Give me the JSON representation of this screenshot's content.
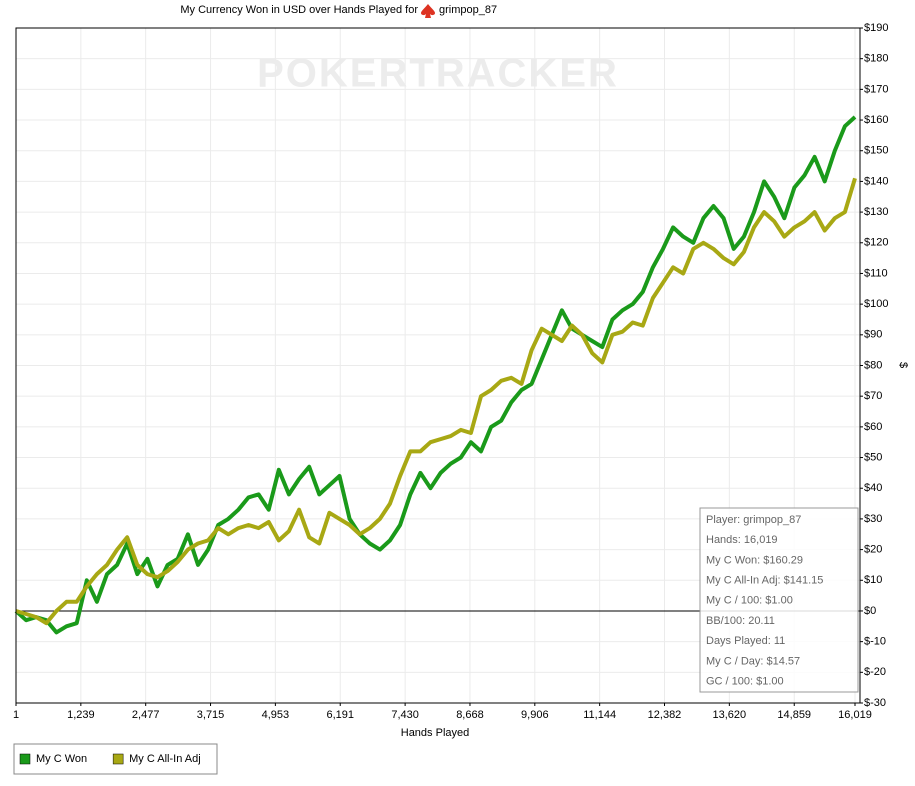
{
  "chart_data": {
    "type": "line",
    "title": "My Currency Won in USD over Hands Played for",
    "player": "grimpop_87",
    "watermark": "POKERTRACKER",
    "x_label": "Hands Played",
    "y_label": "$",
    "xlim": [
      1,
      16019
    ],
    "ylim": [
      -30,
      190
    ],
    "xticks": [
      1,
      {
        "value": 1239,
        "label": "1,239"
      },
      {
        "value": 2477,
        "label": "2,477"
      },
      {
        "value": 3715,
        "label": "3,715"
      },
      {
        "value": 4953,
        "label": "4,953"
      },
      {
        "value": 6191,
        "label": "6,191"
      },
      {
        "value": 7430,
        "label": "7,430"
      },
      {
        "value": 8668,
        "label": "8,668"
      },
      {
        "value": 9906,
        "label": "9,906"
      },
      {
        "value": 11144,
        "label": "11,144"
      },
      {
        "value": 12382,
        "label": "12,382"
      },
      {
        "value": 13620,
        "label": "13,620"
      },
      {
        "value": 14859,
        "label": "14,859"
      },
      {
        "value": 16019,
        "label": "16,019"
      }
    ],
    "yticks": [
      {
        "value": -30,
        "label": "$-30"
      },
      {
        "value": -20,
        "label": "$-20"
      },
      {
        "value": -10,
        "label": "$-10"
      },
      {
        "value": 0,
        "label": "$0"
      },
      {
        "value": 10,
        "label": "$10"
      },
      {
        "value": 20,
        "label": "$20"
      },
      {
        "value": 30,
        "label": "$30"
      },
      {
        "value": 40,
        "label": "$40"
      },
      {
        "value": 50,
        "label": "$50"
      },
      {
        "value": 60,
        "label": "$60"
      },
      {
        "value": 70,
        "label": "$70"
      },
      {
        "value": 80,
        "label": "$80"
      },
      {
        "value": 90,
        "label": "$90"
      },
      {
        "value": 100,
        "label": "$100"
      },
      {
        "value": 110,
        "label": "$110"
      },
      {
        "value": 120,
        "label": "$120"
      },
      {
        "value": 130,
        "label": "$130"
      },
      {
        "value": 140,
        "label": "$140"
      },
      {
        "value": 150,
        "label": "$150"
      },
      {
        "value": 160,
        "label": "$160"
      },
      {
        "value": 170,
        "label": "$170"
      },
      {
        "value": 180,
        "label": "$180"
      },
      {
        "value": 190,
        "label": "$190"
      }
    ],
    "grid": true,
    "x": [
      1,
      194,
      387,
      580,
      773,
      966,
      1159,
      1352,
      1545,
      1738,
      1931,
      2124,
      2317,
      2510,
      2703,
      2896,
      3089,
      3282,
      3475,
      3668,
      3861,
      4054,
      4247,
      4440,
      4633,
      4826,
      5019,
      5212,
      5405,
      5598,
      5791,
      5984,
      6177,
      6370,
      6563,
      6756,
      6949,
      7142,
      7335,
      7528,
      7721,
      7914,
      8107,
      8300,
      8493,
      8686,
      8879,
      9072,
      9265,
      9458,
      9651,
      9844,
      10037,
      10230,
      10423,
      10616,
      10809,
      11002,
      11195,
      11388,
      11581,
      11774,
      11967,
      12160,
      12353,
      12546,
      12739,
      12932,
      13125,
      13318,
      13511,
      13704,
      13897,
      14090,
      14283,
      14476,
      14669,
      14862,
      15055,
      15248,
      15441,
      15634,
      15827,
      16019
    ],
    "series": [
      {
        "name": "My C Won",
        "color": "#1a9a1a",
        "values": [
          0,
          -3,
          -2,
          -3,
          -7,
          -5,
          -4,
          10,
          3,
          12,
          15,
          22,
          12,
          17,
          8,
          15,
          17,
          25,
          15,
          20,
          28,
          30,
          33,
          37,
          38,
          33,
          46,
          38,
          43,
          47,
          38,
          41,
          44,
          30,
          25,
          22,
          20,
          23,
          28,
          38,
          45,
          40,
          45,
          48,
          50,
          55,
          52,
          60,
          62,
          68,
          72,
          74,
          82,
          90,
          98,
          92,
          90,
          88,
          86,
          95,
          98,
          100,
          104,
          112,
          118,
          125,
          122,
          120,
          128,
          132,
          128,
          118,
          122,
          130,
          140,
          135,
          128,
          138,
          142,
          148,
          140,
          150,
          158,
          161
        ]
      },
      {
        "name": "My C All-In Adj",
        "color": "#a8a814",
        "values": [
          0,
          -1,
          -2,
          -4,
          0,
          3,
          3,
          8,
          12,
          15,
          20,
          24,
          15,
          12,
          11,
          13,
          16,
          20,
          22,
          23,
          27,
          25,
          27,
          28,
          27,
          29,
          23,
          26,
          33,
          24,
          22,
          32,
          30,
          28,
          25,
          27,
          30,
          35,
          44,
          52,
          52,
          55,
          56,
          57,
          59,
          58,
          70,
          72,
          75,
          76,
          74,
          85,
          92,
          90,
          88,
          93,
          90,
          84,
          81,
          90,
          91,
          94,
          93,
          102,
          107,
          112,
          110,
          118,
          120,
          118,
          115,
          113,
          117,
          125,
          130,
          127,
          122,
          125,
          127,
          130,
          124,
          128,
          130,
          141
        ]
      }
    ],
    "stats": [
      "Player: grimpop_87",
      "Hands: 16,019",
      "My C Won: $160.29",
      "My C All-In Adj: $141.15",
      "My C / 100: $1.00",
      "BB/100: 20.11",
      "Days Played: 11",
      "My C / Day: $14.57",
      "GC / 100: $1.00"
    ]
  }
}
